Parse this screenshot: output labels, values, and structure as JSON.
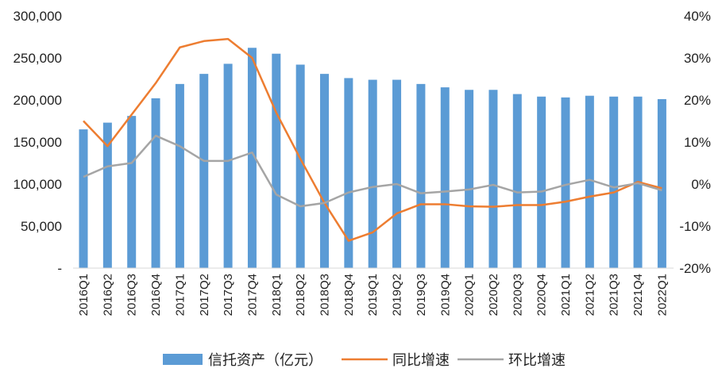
{
  "chart_data": {
    "type": "bar",
    "title": "",
    "categories": [
      "2016Q1",
      "2016Q2",
      "2016Q3",
      "2016Q4",
      "2017Q1",
      "2017Q2",
      "2017Q3",
      "2017Q4",
      "2018Q1",
      "2018Q2",
      "2018Q3",
      "2018Q4",
      "2019Q1",
      "2019Q2",
      "2019Q3",
      "2019Q4",
      "2020Q1",
      "2020Q2",
      "2020Q3",
      "2020Q4",
      "2021Q1",
      "2021Q2",
      "2021Q3",
      "2021Q4",
      "2022Q1"
    ],
    "series": [
      {
        "name": "信托资产（亿元）",
        "type": "bar",
        "axis": "left",
        "color": "#5b9bd5",
        "values": [
          165000,
          173000,
          181000,
          202000,
          219000,
          231000,
          243000,
          262000,
          255000,
          242000,
          231000,
          226000,
          224000,
          224000,
          219000,
          215000,
          212000,
          212000,
          207000,
          204000,
          203000,
          205000,
          204000,
          204000,
          201000
        ]
      },
      {
        "name": "同比增速",
        "type": "line",
        "axis": "right",
        "color": "#ed7d31",
        "values": [
          15.0,
          9.0,
          16.5,
          24.0,
          32.5,
          34.0,
          34.5,
          30.0,
          17.0,
          6.0,
          -4.5,
          -13.5,
          -11.5,
          -7.0,
          -4.8,
          -4.8,
          -5.3,
          -5.4,
          -5.0,
          -5.0,
          -4.2,
          -3.0,
          -2.0,
          0.5,
          -1.0
        ]
      },
      {
        "name": "环比增速",
        "type": "line",
        "axis": "right",
        "color": "#a5a5a5",
        "values": [
          1.7,
          4.2,
          5.0,
          11.5,
          9.0,
          5.5,
          5.5,
          7.5,
          -2.5,
          -5.3,
          -4.5,
          -2.0,
          -0.7,
          0.0,
          -2.2,
          -1.8,
          -1.3,
          -0.2,
          -2.0,
          -1.8,
          -0.2,
          1.0,
          -0.8,
          0.2,
          -1.5
        ]
      }
    ],
    "y_left": {
      "ylim": [
        0,
        300000
      ],
      "ticks": [
        "300,000",
        "250,000",
        "200,000",
        "150,000",
        "100,000",
        "50,000",
        "-"
      ]
    },
    "y_right": {
      "ylim": [
        -20,
        40
      ],
      "ticks": [
        "40%",
        "30%",
        "20%",
        "10%",
        "0%",
        "-10%",
        "-20%"
      ]
    },
    "xlabel": "",
    "ylabel": "",
    "legend": {
      "position": "bottom",
      "items": [
        "信托资产（亿元）",
        "同比增速",
        "环比增速"
      ]
    },
    "grid": false
  }
}
